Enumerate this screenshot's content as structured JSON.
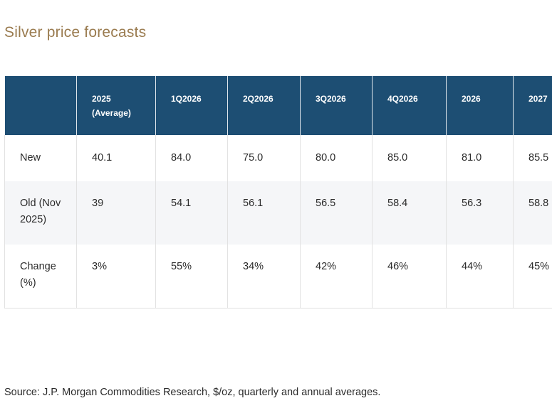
{
  "title": "Silver price forecasts",
  "table": {
    "headers": [
      "",
      "2025\n(Average)",
      "1Q2026",
      "2Q2026",
      "3Q2026",
      "4Q2026",
      "2026",
      "2027"
    ],
    "rows": [
      [
        "New",
        "40.1",
        "84.0",
        "75.0",
        "80.0",
        "85.0",
        "81.0",
        "85.5"
      ],
      [
        "Old (Nov 2025)",
        "39",
        "54.1",
        "56.1",
        "56.5",
        "58.4",
        "56.3",
        "58.8"
      ],
      [
        "Change (%)",
        "3%",
        "55%",
        "34%",
        "42%",
        "46%",
        "44%",
        "45%"
      ]
    ]
  },
  "source": "Source: J.P. Morgan Commodities Research, $/oz, quarterly and annual averages.",
  "colors": {
    "title": "#9a7b4f",
    "header_bg": "#1d4e73",
    "header_text": "#ffffff",
    "stripe": "#f5f6f8"
  }
}
